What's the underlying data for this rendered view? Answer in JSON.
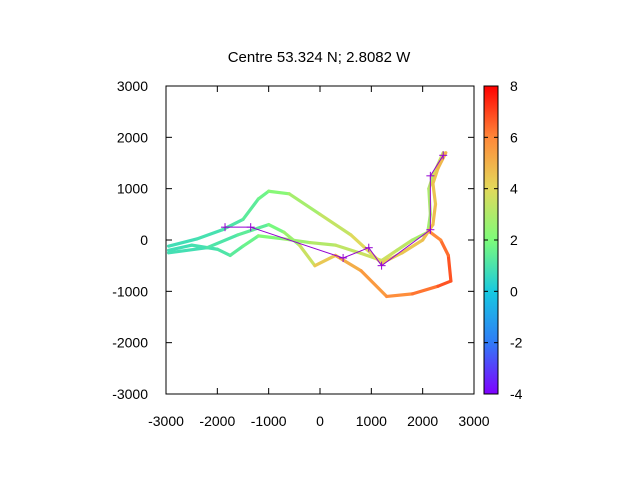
{
  "chart_data": {
    "type": "scatter",
    "title": "Centre 53.324 N; 2.8082  W",
    "xlabel": "",
    "ylabel": "",
    "xlim": [
      -3000,
      3000
    ],
    "ylim": [
      -3000,
      3000
    ],
    "xticks": [
      "-3000",
      "-2000",
      "-1000",
      "0",
      "1000",
      "2000",
      "3000"
    ],
    "yticks": [
      "3000",
      "2000",
      "1000",
      "0",
      "-1000",
      "-2000",
      "-3000"
    ],
    "colorbar": {
      "range": [
        -4,
        8
      ],
      "ticks": [
        "8",
        "6",
        "4",
        "2",
        "0",
        "-2",
        "-4"
      ],
      "palette": [
        "#7f00ff",
        "#2f7df6",
        "#17c8e1",
        "#7dfc7a",
        "#e4d85a",
        "#ff8a3a",
        "#ff0000"
      ]
    },
    "series": [
      {
        "points": [
          {
            "x": -2950,
            "y": -200,
            "c": 0.8
          },
          {
            "x": -2500,
            "y": -100,
            "c": 0.9
          },
          {
            "x": -2000,
            "y": -180,
            "c": 1.0
          },
          {
            "x": -1750,
            "y": -300,
            "c": 1.2
          },
          {
            "x": -1500,
            "y": -120,
            "c": 1.5
          },
          {
            "x": -1200,
            "y": 80,
            "c": 1.8
          },
          {
            "x": -700,
            "y": 20,
            "c": 2.4
          },
          {
            "x": -200,
            "y": -50,
            "c": 2.9
          },
          {
            "x": 300,
            "y": -100,
            "c": 3.2
          },
          {
            "x": 800,
            "y": -260,
            "c": 3.4
          },
          {
            "x": 1200,
            "y": -400,
            "c": 3.6
          },
          {
            "x": 1500,
            "y": -200,
            "c": 3.5
          },
          {
            "x": 1800,
            "y": 0,
            "c": 3.0
          },
          {
            "x": 2100,
            "y": 150,
            "c": 2.7
          },
          {
            "x": 2150,
            "y": 500,
            "c": 2.8
          },
          {
            "x": 2120,
            "y": 1000,
            "c": 3.0
          },
          {
            "x": 2200,
            "y": 1250,
            "c": 3.2
          },
          {
            "x": 2400,
            "y": 1700,
            "c": 3.8
          }
        ]
      },
      {
        "points": [
          {
            "x": -2950,
            "y": -120,
            "c": 0.8
          },
          {
            "x": -2400,
            "y": 20,
            "c": 0.9
          },
          {
            "x": -1900,
            "y": 200,
            "c": 1.0
          },
          {
            "x": -1500,
            "y": 400,
            "c": 1.2
          },
          {
            "x": -1200,
            "y": 800,
            "c": 1.5
          },
          {
            "x": -1000,
            "y": 950,
            "c": 1.9
          },
          {
            "x": -600,
            "y": 900,
            "c": 2.5
          },
          {
            "x": 0,
            "y": 500,
            "c": 3.1
          },
          {
            "x": 600,
            "y": 100,
            "c": 3.6
          },
          {
            "x": 1200,
            "y": -450,
            "c": 4.2
          },
          {
            "x": 1600,
            "y": -250,
            "c": 4.4
          },
          {
            "x": 2000,
            "y": 0,
            "c": 4.6
          },
          {
            "x": 2200,
            "y": 300,
            "c": 4.8
          },
          {
            "x": 2250,
            "y": 700,
            "c": 4.6
          },
          {
            "x": 2200,
            "y": 1100,
            "c": 4.4
          },
          {
            "x": 2300,
            "y": 1400,
            "c": 4.7
          },
          {
            "x": 2450,
            "y": 1700,
            "c": 5.0
          }
        ]
      },
      {
        "points": [
          {
            "x": -2950,
            "y": -250,
            "c": 0.8
          },
          {
            "x": -2200,
            "y": -150,
            "c": 1.0
          },
          {
            "x": -1600,
            "y": 100,
            "c": 1.2
          },
          {
            "x": -1000,
            "y": 300,
            "c": 1.6
          },
          {
            "x": -700,
            "y": 150,
            "c": 2.2
          },
          {
            "x": -400,
            "y": -100,
            "c": 3.0
          },
          {
            "x": -100,
            "y": -500,
            "c": 4.0
          },
          {
            "x": 300,
            "y": -300,
            "c": 4.8
          },
          {
            "x": 800,
            "y": -600,
            "c": 5.4
          },
          {
            "x": 1300,
            "y": -1100,
            "c": 5.8
          },
          {
            "x": 1800,
            "y": -1050,
            "c": 6.0
          },
          {
            "x": 2300,
            "y": -900,
            "c": 6.6
          },
          {
            "x": 2550,
            "y": -800,
            "c": 7.0
          },
          {
            "x": 2500,
            "y": -300,
            "c": 6.6
          },
          {
            "x": 2350,
            "y": 0,
            "c": 6.2
          },
          {
            "x": 2150,
            "y": 150,
            "c": 5.8
          }
        ]
      }
    ],
    "waypoints": [
      {
        "x": -1850,
        "y": 250
      },
      {
        "x": -1350,
        "y": 250
      },
      {
        "x": 450,
        "y": -350
      },
      {
        "x": 950,
        "y": -150
      },
      {
        "x": 1200,
        "y": -500
      },
      {
        "x": 2150,
        "y": 200
      },
      {
        "x": 2150,
        "y": 1250
      },
      {
        "x": 2400,
        "y": 1650
      }
    ],
    "route_color": "#9400d3",
    "grid": false
  }
}
